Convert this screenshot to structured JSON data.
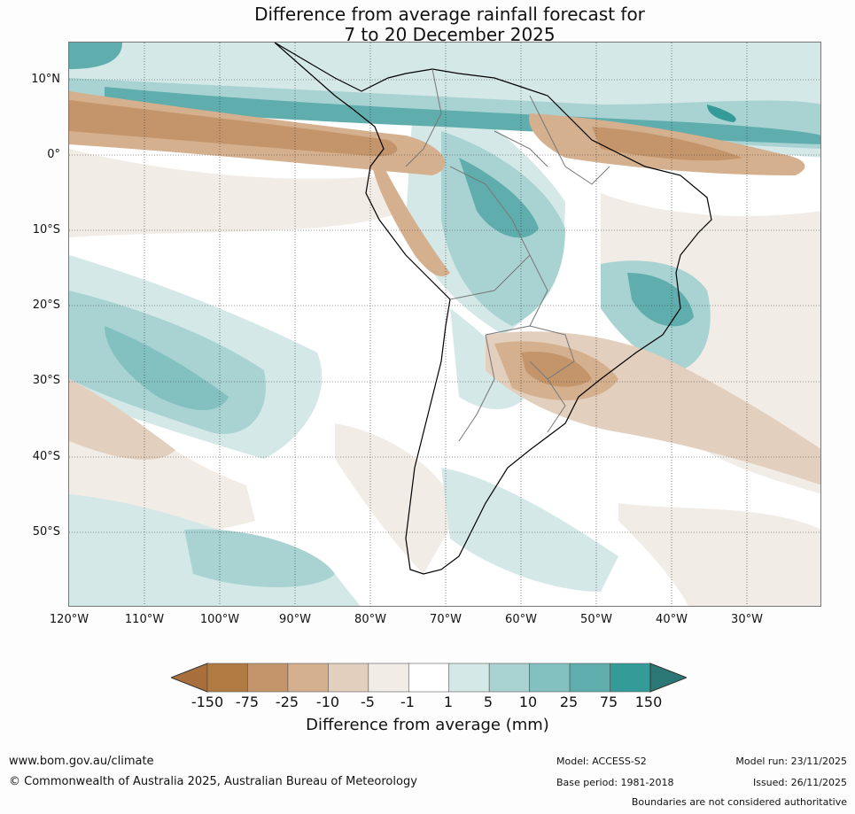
{
  "title": {
    "line1": "Difference from average rainfall forecast for",
    "line2": "7 to 20 December 2025"
  },
  "map": {
    "lat_labels": [
      "10°N",
      "0°",
      "10°S",
      "20°S",
      "30°S",
      "40°S",
      "50°S"
    ],
    "lon_labels": [
      "120°W",
      "110°W",
      "100°W",
      "90°W",
      "80°W",
      "70°W",
      "60°W",
      "50°W",
      "40°W",
      "30°W"
    ]
  },
  "colorbar": {
    "title": "Difference from average (mm)",
    "tick_labels": [
      "-150",
      "-75",
      "-25",
      "-10",
      "-5",
      "-1",
      "1",
      "5",
      "10",
      "25",
      "75",
      "150"
    ],
    "colors": [
      "#a86f3c",
      "#b07a43",
      "#c4956a",
      "#d4b08e",
      "#e2cfbd",
      "#f2ece6",
      "#ffffff",
      "#d4e8e8",
      "#a9d3d2",
      "#82c1bf",
      "#5fadac",
      "#349b98",
      "#2b7776"
    ],
    "min_extend_color": "#a86f3c",
    "max_extend_color": "#2b7776"
  },
  "footer": {
    "url": "www.bom.gov.au/climate",
    "copyright": "© Commonwealth of Australia 2025, Australian Bureau of Meteorology",
    "model": "Model: ACCESS-S2",
    "base_period": "Base period: 1981-2018",
    "model_run": "Model run: 23/11/2025",
    "issued": "Issued: 26/11/2025",
    "disclaimer": "Boundaries are not considered authoritative"
  }
}
